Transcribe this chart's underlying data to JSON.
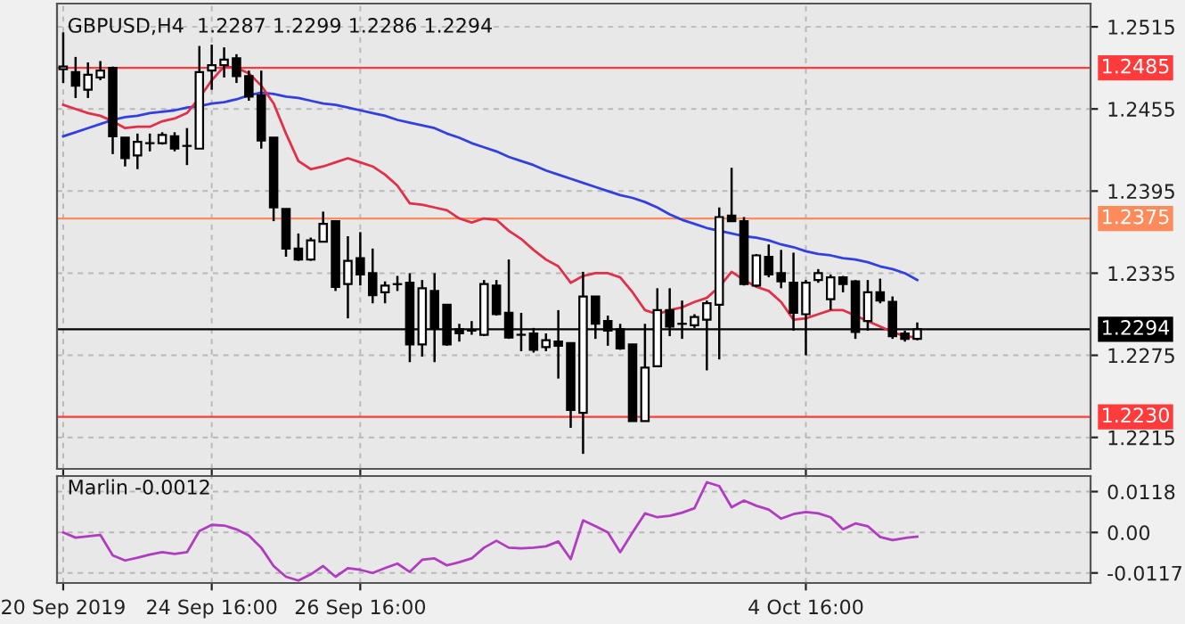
{
  "chart_data": [
    {
      "type": "candlestick",
      "title": "GBPUSD,H4  1.2287 1.2299 1.2286 1.2294",
      "categories": [
        null,
        null,
        null,
        null,
        null,
        null,
        null,
        null,
        null,
        null,
        null,
        null,
        null,
        null,
        null,
        null,
        null,
        null,
        null,
        null,
        null,
        null,
        null,
        null,
        null,
        null,
        null,
        null,
        null,
        null,
        null,
        null,
        null,
        null,
        null,
        null,
        null,
        null,
        null,
        null,
        null,
        null,
        null,
        null,
        null,
        null,
        null,
        null,
        null,
        null,
        null,
        null,
        null,
        null,
        null,
        null,
        null,
        null,
        null,
        null,
        null,
        null,
        null,
        null,
        null,
        null,
        null,
        null,
        null,
        null
      ],
      "ohlc": [
        [
          1.2484,
          1.2511,
          1.2474,
          1.2486
        ],
        [
          1.2482,
          1.2493,
          1.2463,
          1.2472
        ],
        [
          1.2469,
          1.2489,
          1.2463,
          1.248
        ],
        [
          1.2478,
          1.249,
          1.2476,
          1.2483
        ],
        [
          1.2485,
          1.2486,
          1.2422,
          1.2435
        ],
        [
          1.2434,
          1.2434,
          1.2413,
          1.2419
        ],
        [
          1.2421,
          1.2437,
          1.2411,
          1.2431
        ],
        [
          1.243,
          1.2437,
          1.2424,
          1.243
        ],
        [
          1.243,
          1.2438,
          1.2429,
          1.2436
        ],
        [
          1.2435,
          1.2438,
          1.2424,
          1.2426
        ],
        [
          1.2428,
          1.2441,
          1.2414,
          1.2428
        ],
        [
          1.2426,
          1.2501,
          1.2426,
          1.2482
        ],
        [
          1.2483,
          1.2502,
          1.2469,
          1.2487
        ],
        [
          1.2487,
          1.25,
          1.2478,
          1.2491
        ],
        [
          1.2492,
          1.2495,
          1.2474,
          1.2479
        ],
        [
          1.2479,
          1.2483,
          1.2461,
          1.2464
        ],
        [
          1.2465,
          1.2483,
          1.2426,
          1.2432
        ],
        [
          1.2434,
          1.2434,
          1.2373,
          1.2383
        ],
        [
          1.2382,
          1.2382,
          1.2347,
          1.2353
        ],
        [
          1.2353,
          1.2364,
          1.2344,
          1.2345
        ],
        [
          1.2345,
          1.2361,
          1.2344,
          1.2359
        ],
        [
          1.2358,
          1.238,
          1.2358,
          1.2371
        ],
        [
          1.2373,
          1.2373,
          1.2322,
          1.2325
        ],
        [
          1.2327,
          1.2362,
          1.2302,
          1.2344
        ],
        [
          1.2346,
          1.2365,
          1.2326,
          1.2334
        ],
        [
          1.2335,
          1.2353,
          1.2313,
          1.2319
        ],
        [
          1.2321,
          1.2329,
          1.2313,
          1.2326
        ],
        [
          1.2327,
          1.2333,
          1.2322,
          1.2327
        ],
        [
          1.2328,
          1.2335,
          1.227,
          1.2283
        ],
        [
          1.2283,
          1.233,
          1.2274,
          1.2324
        ],
        [
          1.2322,
          1.2335,
          1.227,
          1.2295
        ],
        [
          1.2312,
          1.2312,
          1.2282,
          1.2283
        ],
        [
          1.2294,
          1.2298,
          1.2285,
          1.2291
        ],
        [
          1.2293,
          1.23,
          1.229,
          1.2293
        ],
        [
          1.229,
          1.233,
          1.2289,
          1.2327
        ],
        [
          1.2326,
          1.233,
          1.2304,
          1.2305
        ],
        [
          1.2306,
          1.2345,
          1.2287,
          1.2288
        ],
        [
          1.229,
          1.2306,
          1.2278,
          1.229
        ],
        [
          1.2291,
          1.2295,
          1.2277,
          1.2279
        ],
        [
          1.2281,
          1.2291,
          1.2278,
          1.2286
        ],
        [
          1.2285,
          1.2308,
          1.2258,
          1.2282
        ],
        [
          1.2284,
          1.2284,
          1.2222,
          1.2235
        ],
        [
          1.2233,
          1.2336,
          1.2203,
          1.2318
        ],
        [
          1.2318,
          1.2318,
          1.2287,
          1.2298
        ],
        [
          1.23,
          1.2304,
          1.2282,
          1.2293
        ],
        [
          1.2294,
          1.2298,
          1.2279,
          1.228
        ],
        [
          1.2283,
          1.2283,
          1.2227,
          1.2227
        ],
        [
          1.2227,
          1.2298,
          1.2227,
          1.2266
        ],
        [
          1.2267,
          1.2324,
          1.2267,
          1.2308
        ],
        [
          1.2308,
          1.2324,
          1.2289,
          1.2296
        ],
        [
          1.2298,
          1.2315,
          1.2287,
          1.2298
        ],
        [
          1.2297,
          1.2305,
          1.2295,
          1.2303
        ],
        [
          1.2301,
          1.2315,
          1.2264,
          1.2313
        ],
        [
          1.2312,
          1.2383,
          1.2272,
          1.2376
        ],
        [
          1.2377,
          1.2412,
          1.2373,
          1.2373
        ],
        [
          1.2373,
          1.2376,
          1.2326,
          1.2327
        ],
        [
          1.2326,
          1.2349,
          1.2325,
          1.2348
        ],
        [
          1.2347,
          1.2356,
          1.2332,
          1.2334
        ],
        [
          1.2335,
          1.2352,
          1.2324,
          1.2329
        ],
        [
          1.2328,
          1.235,
          1.2293,
          1.2306
        ],
        [
          1.2305,
          1.233,
          1.2275,
          1.2328
        ],
        [
          1.233,
          1.2338,
          1.2328,
          1.2335
        ],
        [
          1.2316,
          1.2334,
          1.2308,
          1.2332
        ],
        [
          1.2332,
          1.2333,
          1.2321,
          1.2327
        ],
        [
          1.2329,
          1.233,
          1.2287,
          1.2292
        ],
        [
          1.23,
          1.233,
          1.2293,
          1.2321
        ],
        [
          1.2321,
          1.2331,
          1.2313,
          1.2315
        ],
        [
          1.2314,
          1.2318,
          1.2287,
          1.2289
        ],
        [
          1.2291,
          1.2293,
          1.2285,
          1.2287
        ],
        [
          1.2287,
          1.2299,
          1.2286,
          1.2294
        ]
      ],
      "series": [
        {
          "type": "line",
          "color": "#3340e0",
          "values": [
            1.2435,
            1.2438,
            1.2441,
            1.2444,
            1.2447,
            1.2449,
            1.245,
            1.2452,
            1.2453,
            1.2454,
            1.2456,
            1.2457,
            1.2459,
            1.246,
            1.2462,
            1.2465,
            1.2467,
            1.2466,
            1.2464,
            1.2463,
            1.2461,
            1.2459,
            1.2458,
            1.2456,
            1.2454,
            1.2452,
            1.245,
            1.2447,
            1.2445,
            1.2443,
            1.2441,
            1.2437,
            1.2434,
            1.243,
            1.2427,
            1.2424,
            1.242,
            1.2417,
            1.2414,
            1.241,
            1.2407,
            1.2404,
            1.2401,
            1.2398,
            1.2395,
            1.2392,
            1.239,
            1.2387,
            1.2383,
            1.2378,
            1.2374,
            1.2371,
            1.2368,
            1.2366,
            1.2364,
            1.2362,
            1.2361,
            1.2359,
            1.2356,
            1.2354,
            1.2351,
            1.2349,
            1.2348,
            1.2346,
            1.2345,
            1.2343,
            1.234,
            1.2338,
            1.2335,
            1.233
          ]
        },
        {
          "type": "line",
          "color": "#e0304a",
          "values": [
            1.2458,
            1.2455,
            1.2452,
            1.245,
            1.2446,
            1.2441,
            1.2442,
            1.2442,
            1.2446,
            1.2448,
            1.2452,
            1.2463,
            1.2476,
            1.2486,
            1.2485,
            1.2481,
            1.2472,
            1.2459,
            1.2437,
            1.2417,
            1.2411,
            1.2413,
            1.2416,
            1.2419,
            1.2416,
            1.2413,
            1.2407,
            1.2399,
            1.2386,
            1.2385,
            1.2383,
            1.2381,
            1.2375,
            1.2372,
            1.2375,
            1.2374,
            1.2366,
            1.236,
            1.2352,
            1.2345,
            1.234,
            1.2328,
            1.2333,
            1.2335,
            1.2335,
            1.2332,
            1.2321,
            1.2308,
            1.2305,
            1.2308,
            1.231,
            1.2314,
            1.2317,
            1.2325,
            1.2336,
            1.233,
            1.2325,
            1.2322,
            1.2314,
            1.2301,
            1.2302,
            1.2305,
            1.2308,
            1.2308,
            1.2304,
            1.23,
            1.2296,
            1.2292,
            1.2289,
            1.2288
          ]
        }
      ],
      "ylim": [
        1.2192,
        1.2532
      ],
      "yticks": [
        1.2515,
        1.2455,
        1.2395,
        1.2335,
        1.2275,
        1.2215
      ],
      "ref_lines": [
        {
          "axis": "y",
          "value": 1.2485,
          "label": "1.2485",
          "color": "#ff3b3b"
        },
        {
          "axis": "y",
          "value": 1.2375,
          "label": "1.2375",
          "color": "#ff8a5c"
        },
        {
          "axis": "y",
          "value": 1.223,
          "label": "1.2230",
          "color": "#ff3b3b"
        },
        {
          "axis": "y",
          "value": 1.2294,
          "label": "1.2294",
          "color": "#000000"
        }
      ],
      "grid": true
    },
    {
      "type": "line",
      "title": "Marlin -0.0012",
      "categories": [
        "20 Sep 2019",
        null,
        null,
        null,
        null,
        null,
        null,
        null,
        null,
        null,
        null,
        null,
        "24 Sep 16:00",
        null,
        null,
        null,
        null,
        null,
        null,
        null,
        null,
        null,
        null,
        null,
        "26 Sep 16:00",
        null,
        null,
        null,
        null,
        null,
        null,
        null,
        null,
        null,
        null,
        null,
        null,
        null,
        null,
        null,
        null,
        null,
        null,
        null,
        null,
        null,
        null,
        null,
        null,
        null,
        null,
        null,
        null,
        null,
        null,
        null,
        null,
        null,
        null,
        null,
        "4 Oct 16:00",
        null,
        null,
        null,
        null,
        null,
        null,
        null,
        null,
        null
      ],
      "series": [
        {
          "color": "#b03cc0",
          "values": [
            0.0,
            -0.0015,
            -0.0011,
            -0.0007,
            -0.0066,
            -0.0081,
            -0.0073,
            -0.0064,
            -0.0057,
            -0.0062,
            -0.0057,
            0.0004,
            0.0022,
            0.002,
            0.0009,
            -0.0009,
            -0.0044,
            -0.0097,
            -0.0128,
            -0.0139,
            -0.0121,
            -0.0097,
            -0.0128,
            -0.0103,
            -0.0108,
            -0.0117,
            -0.0103,
            -0.009,
            -0.0114,
            -0.0079,
            -0.0075,
            -0.0095,
            -0.0086,
            -0.0075,
            -0.0044,
            -0.0024,
            -0.0044,
            -0.0046,
            -0.0044,
            -0.004,
            -0.0026,
            -0.0077,
            0.0035,
            0.0018,
            0.0,
            -0.0057,
            0.0,
            0.0055,
            0.0044,
            0.0048,
            0.0057,
            0.007,
            0.0145,
            0.0134,
            0.0073,
            0.0092,
            0.0077,
            0.0066,
            0.004,
            0.0053,
            0.0059,
            0.0055,
            0.0044,
            0.0009,
            0.0026,
            0.0018,
            -0.0013,
            -0.0022,
            -0.0016,
            -0.0012
          ]
        }
      ],
      "ylim": [
        -0.0146,
        0.0163
      ],
      "yticks": [
        0.0118,
        {
          "value": 0,
          "label": "0.00"
        },
        -0.0117
      ],
      "grid": true
    }
  ]
}
